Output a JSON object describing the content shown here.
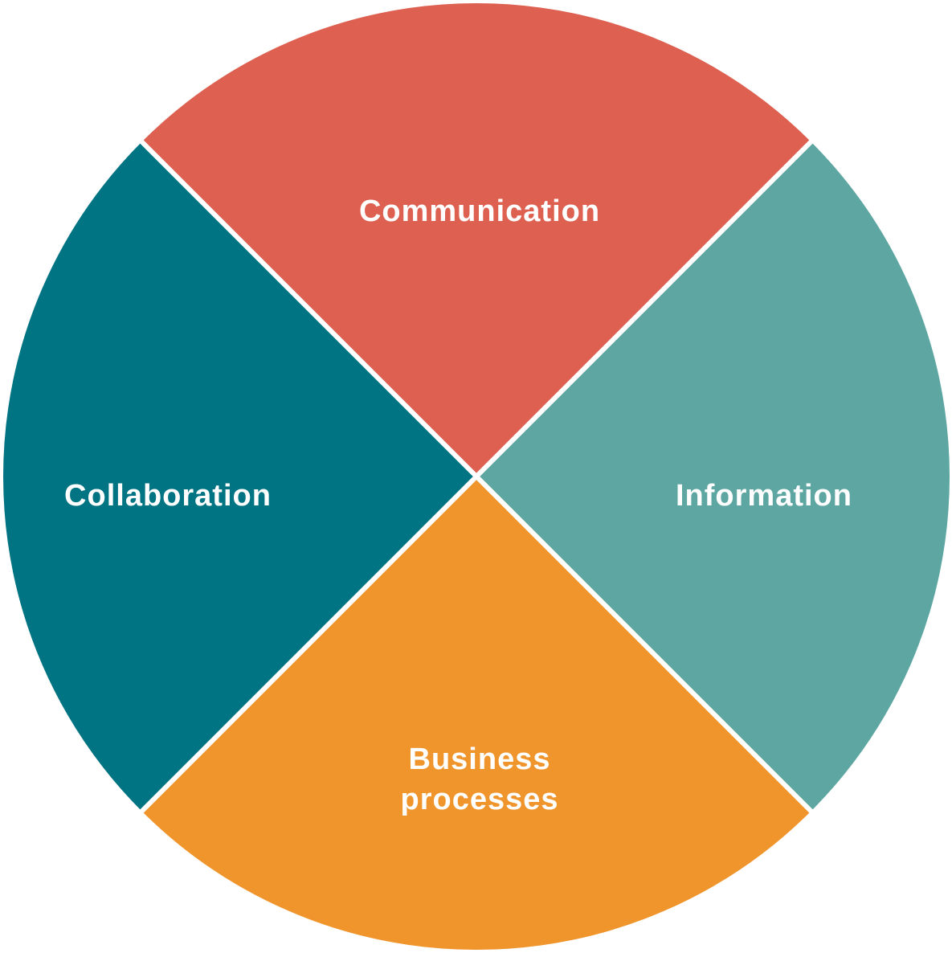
{
  "diagram": {
    "segments": [
      {
        "id": "communication",
        "lines": [
          "Communication"
        ],
        "color": "#DD6050"
      },
      {
        "id": "information",
        "lines": [
          "Information"
        ],
        "color": "#5DA6A1"
      },
      {
        "id": "business-processes",
        "lines": [
          "Business",
          "processes"
        ],
        "color": "#EF952C"
      },
      {
        "id": "collaboration",
        "lines": [
          "Collaboration"
        ],
        "color": "#017483"
      }
    ]
  }
}
